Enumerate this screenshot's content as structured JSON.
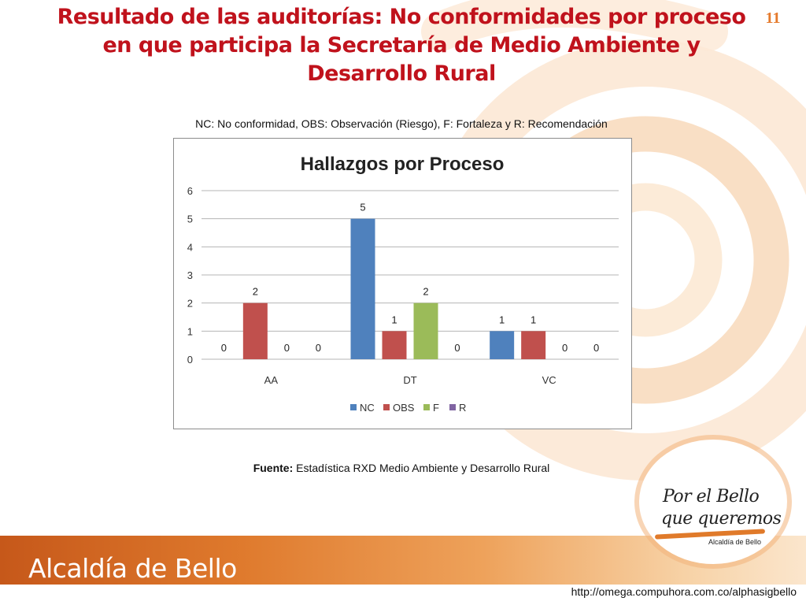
{
  "slide": {
    "title": "Resultado de las auditorías: No conformidades por proceso en que participa la Secretaría de Medio Ambiente y Desarrollo Rural",
    "number": "11",
    "legend_note": "NC: No conformidad, OBS: Observación (Riesgo), F: Fortaleza y R: Recomendación",
    "source_label": "Fuente:",
    "source_text": " Estadística RXD Medio Ambiente y Desarrollo Rural",
    "org_name": "Alcaldía de Bello",
    "logo_line1": "Por el Bello",
    "logo_line2": "que queremos",
    "logo_sub": "Alcaldía de Bello",
    "footer_url": "http://omega.compuhora.com.co/alphasigbello"
  },
  "colors": {
    "title": "#c0121c",
    "accent": "#e57a2c",
    "nc": "#4f81bd",
    "obs": "#c0504d",
    "f": "#9bbb59",
    "r": "#8064a2"
  },
  "chart_data": {
    "type": "bar",
    "title": "Hallazgos por Proceso",
    "categories": [
      "AA",
      "DT",
      "VC"
    ],
    "series": [
      {
        "name": "NC",
        "values": [
          0,
          5,
          1
        ]
      },
      {
        "name": "OBS",
        "values": [
          2,
          1,
          1
        ]
      },
      {
        "name": "F",
        "values": [
          0,
          2,
          0
        ]
      },
      {
        "name": "R",
        "values": [
          0,
          0,
          0
        ]
      }
    ],
    "ylim": [
      0,
      6
    ],
    "yticks": [
      0,
      1,
      2,
      3,
      4,
      5,
      6
    ],
    "grid": true,
    "data_labels": true,
    "legend": "bottom"
  }
}
